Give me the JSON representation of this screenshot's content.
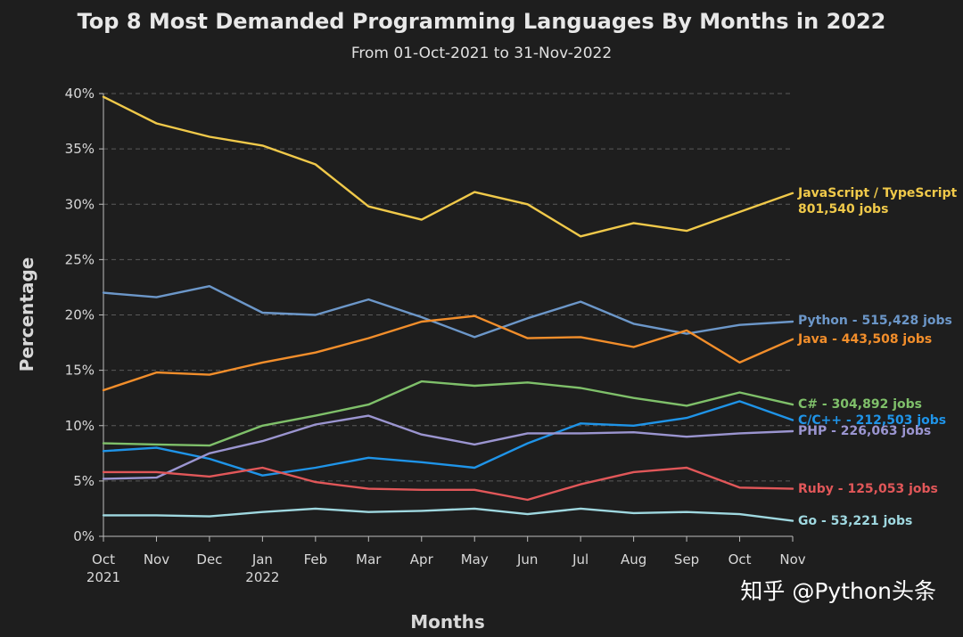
{
  "chart_data": {
    "type": "line",
    "title": "Top 8 Most Demanded Programming Languages By Months in 2022",
    "subtitle": "From 01-Oct-2021 to 31-Nov-2022",
    "xlabel": "Months",
    "ylabel": "Percentage",
    "ylim": [
      0,
      40
    ],
    "yticks": [
      "0%",
      "5%",
      "10%",
      "15%",
      "20%",
      "25%",
      "30%",
      "35%",
      "40%"
    ],
    "grid": "horizontal dashed",
    "categories": [
      "Oct",
      "Nov",
      "Dec",
      "Jan",
      "Feb",
      "Mar",
      "Apr",
      "May",
      "Jun",
      "Jul",
      "Aug",
      "Sep",
      "Oct",
      "Nov"
    ],
    "category_years": [
      "2021",
      "",
      "",
      "2022",
      "",
      "",
      "",
      "",
      "",
      "",
      "",
      "",
      "",
      ""
    ],
    "series": [
      {
        "name": "JavaScript / TypeScript",
        "label": "JavaScript / TypeScript",
        "label2": "801,540 jobs",
        "color": "#f0c94a",
        "values": [
          39.7,
          37.3,
          36.1,
          35.3,
          33.6,
          29.8,
          28.6,
          31.1,
          30.0,
          27.1,
          28.3,
          27.6,
          29.3,
          31.0
        ]
      },
      {
        "name": "Python",
        "label": "Python - 515,428 jobs",
        "color": "#6c97c9",
        "values": [
          22.0,
          21.6,
          22.6,
          20.2,
          20.0,
          21.4,
          19.8,
          18.0,
          19.7,
          21.2,
          19.2,
          18.3,
          19.1,
          19.4
        ]
      },
      {
        "name": "Java",
        "label": "Java - 443,508 jobs",
        "color": "#f28e2b",
        "values": [
          13.2,
          14.8,
          14.6,
          15.7,
          16.6,
          17.9,
          19.4,
          19.9,
          17.9,
          18.0,
          17.1,
          18.6,
          15.7,
          17.8
        ]
      },
      {
        "name": "C#",
        "label": "C# - 304,892 jobs",
        "color": "#7fc06a",
        "values": [
          8.4,
          8.3,
          8.2,
          10.0,
          10.9,
          11.9,
          14.0,
          13.6,
          13.9,
          13.4,
          12.5,
          11.8,
          13.0,
          11.9
        ]
      },
      {
        "name": "C/C++",
        "label": "C/C++ - 212,503 jobs",
        "color": "#1f94e8",
        "values": [
          7.7,
          8.0,
          7.0,
          5.5,
          6.2,
          7.1,
          6.7,
          6.2,
          8.4,
          10.2,
          10.0,
          10.7,
          12.2,
          10.5
        ]
      },
      {
        "name": "PHP",
        "label": "PHP - 226,063 jobs",
        "color": "#9b95d0",
        "values": [
          5.2,
          5.3,
          7.5,
          8.6,
          10.1,
          10.9,
          9.2,
          8.3,
          9.3,
          9.3,
          9.4,
          9.0,
          9.3,
          9.5
        ]
      },
      {
        "name": "Ruby",
        "label": "Ruby - 125,053 jobs",
        "color": "#e15759",
        "values": [
          5.8,
          5.8,
          5.4,
          6.2,
          4.9,
          4.3,
          4.2,
          4.2,
          3.3,
          4.7,
          5.8,
          6.2,
          4.4,
          4.3
        ]
      },
      {
        "name": "Go",
        "label": "Go - 53,221 jobs",
        "color": "#9fd8e0",
        "values": [
          1.9,
          1.9,
          1.8,
          2.2,
          2.5,
          2.2,
          2.3,
          2.5,
          2.0,
          2.5,
          2.1,
          2.2,
          2.0,
          1.4
        ]
      }
    ]
  },
  "watermark": "知乎 @Python头条"
}
